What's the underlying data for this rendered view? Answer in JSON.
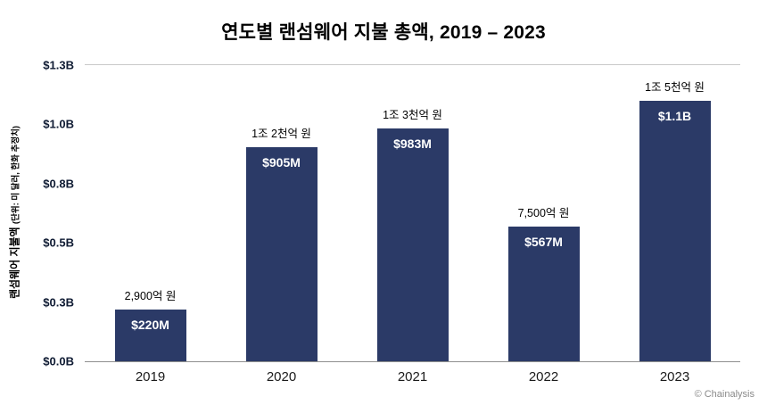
{
  "title": "연도별 랜섬웨어 지불 총액, 2019 – 2023",
  "y_axis_label_main": "랜섬웨어 지불액 ",
  "y_axis_label_sub": "(단위: 미 달러, 한화 추정치)",
  "credit": "© Chainalysis",
  "colors": {
    "bar": "#2b3a67",
    "grid_top": "#c9c9c9",
    "axis": "#8f8f8f",
    "value_text": "#ffffff",
    "annotation_text": "#000000"
  },
  "chart_data": {
    "type": "bar",
    "title": "연도별 랜섬웨어 지불 총액, 2019 – 2023",
    "categories": [
      "2019",
      "2020",
      "2021",
      "2022",
      "2023"
    ],
    "values_usd_millions": [
      220,
      905,
      983,
      567,
      1100
    ],
    "bar_labels": [
      "$220M",
      "$905M",
      "$983M",
      "$567M",
      "$1.1B"
    ],
    "annotations_krw": [
      "2,900억 원",
      "1조 2천억 원",
      "1조 3천억 원",
      "7,500억 원",
      "1조 5천억 원"
    ],
    "xlabel": "",
    "ylabel": "랜섬웨어 지불액 (단위: 미 달러, 한화 추정치)",
    "y_ticks": [
      "$0.0B",
      "$0.3B",
      "$0.5B",
      "$0.8B",
      "$1.0B",
      "$1.3B"
    ],
    "ylim_millions": [
      0,
      1250
    ],
    "grid": "top line and baseline only",
    "legend_position": "none"
  }
}
